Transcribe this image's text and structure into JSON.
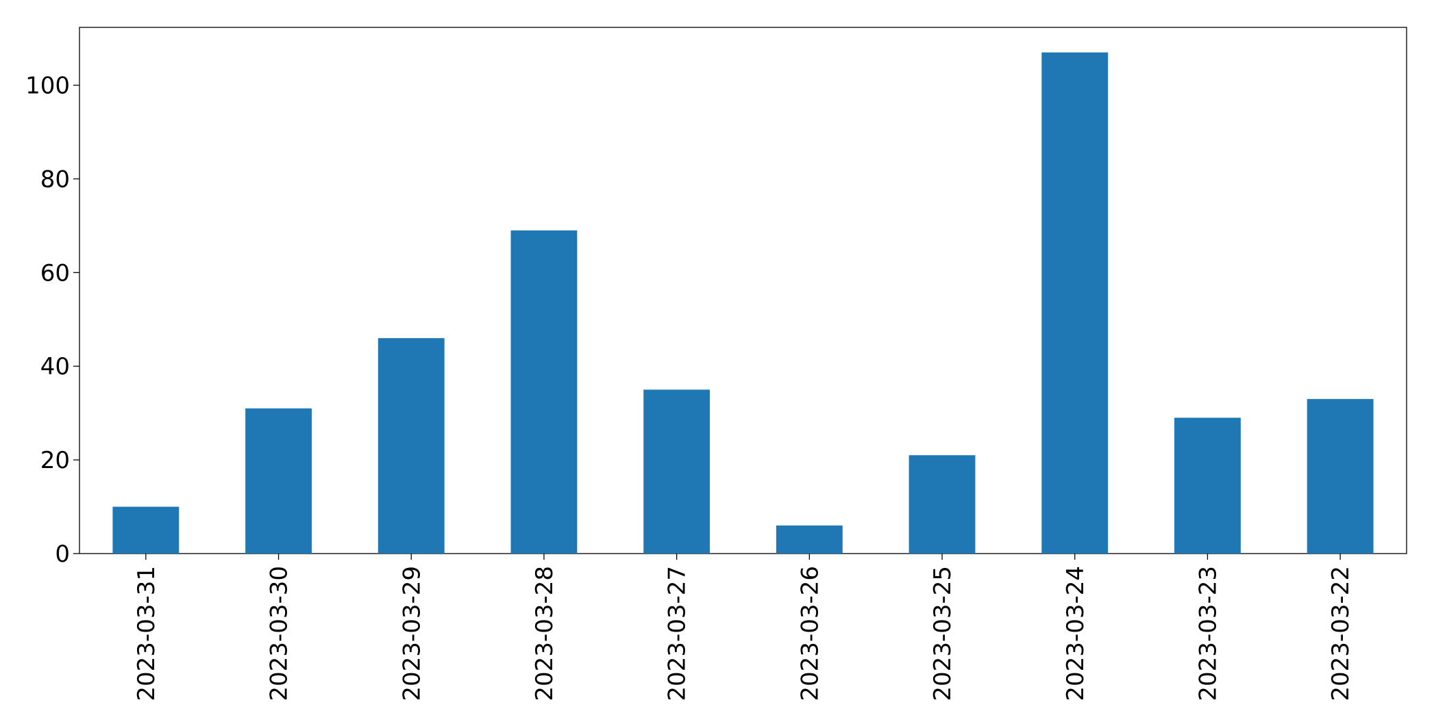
{
  "chart_data": {
    "type": "bar",
    "categories": [
      "2023-03-31",
      "2023-03-30",
      "2023-03-29",
      "2023-03-28",
      "2023-03-27",
      "2023-03-26",
      "2023-03-25",
      "2023-03-24",
      "2023-03-23",
      "2023-03-22"
    ],
    "values": [
      10,
      31,
      46,
      69,
      35,
      6,
      21,
      107,
      29,
      33
    ],
    "color": "#1f77b4",
    "ylim": [
      0,
      112.35
    ],
    "yticks": [
      0,
      20,
      40,
      60,
      80,
      100
    ],
    "grid": false
  }
}
